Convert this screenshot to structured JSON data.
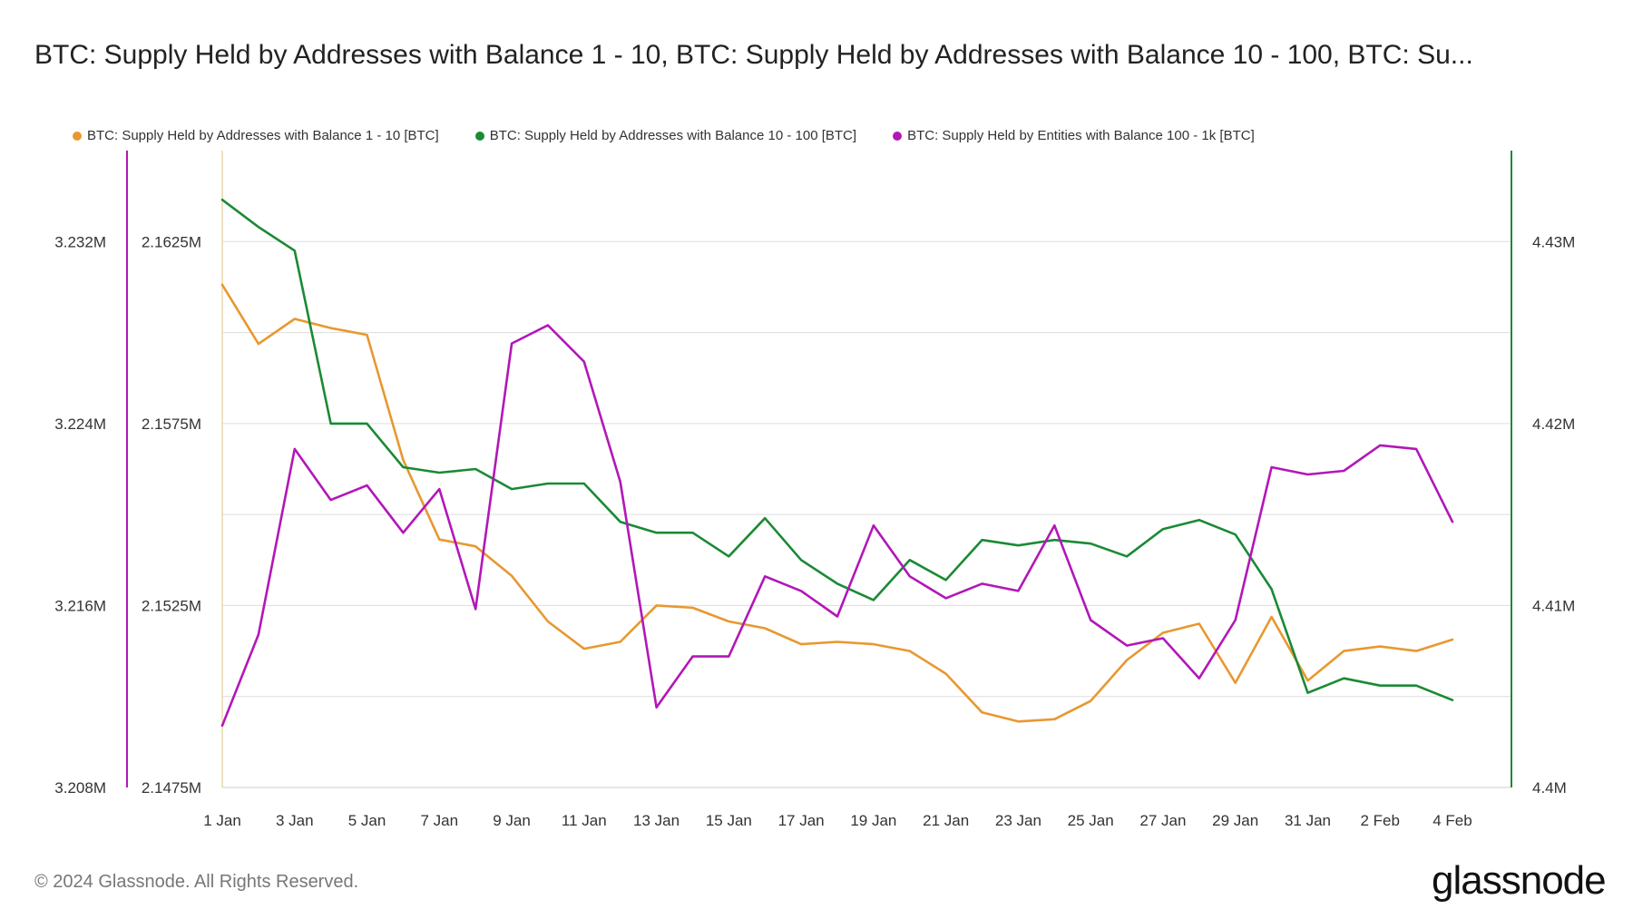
{
  "title": "BTC: Supply Held by Addresses with Balance 1 - 10, BTC: Supply Held by Addresses with Balance 10 - 100, BTC: Su...",
  "footer": "© 2024 Glassnode. All Rights Reserved.",
  "logo_text": "glassnode",
  "chart_data": {
    "type": "line",
    "title": "BTC: Supply Held by Addresses with Balance 1 - 10, BTC: Supply Held by Addresses with Balance 10 - 100, BTC: Su...",
    "grid": true,
    "legend_position": "top-left",
    "x": [
      "1 Jan",
      "2 Jan",
      "3 Jan",
      "4 Jan",
      "5 Jan",
      "6 Jan",
      "7 Jan",
      "8 Jan",
      "9 Jan",
      "10 Jan",
      "11 Jan",
      "12 Jan",
      "13 Jan",
      "14 Jan",
      "15 Jan",
      "16 Jan",
      "17 Jan",
      "18 Jan",
      "19 Jan",
      "20 Jan",
      "21 Jan",
      "22 Jan",
      "23 Jan",
      "24 Jan",
      "25 Jan",
      "26 Jan",
      "27 Jan",
      "28 Jan",
      "29 Jan",
      "30 Jan",
      "31 Jan",
      "1 Feb",
      "2 Feb",
      "3 Feb",
      "4 Feb"
    ],
    "x_tick_labels": [
      "1 Jan",
      "3 Jan",
      "5 Jan",
      "7 Jan",
      "9 Jan",
      "11 Jan",
      "13 Jan",
      "15 Jan",
      "17 Jan",
      "19 Jan",
      "21 Jan",
      "23 Jan",
      "25 Jan",
      "27 Jan",
      "29 Jan",
      "31 Jan",
      "2 Feb",
      "4 Feb"
    ],
    "axes": {
      "left_outer": {
        "series": 0,
        "range": [
          3.208,
          3.236
        ],
        "ticks": [
          "3.208M",
          "3.216M",
          "3.224M",
          "3.232M"
        ],
        "tick_values": [
          3.208,
          3.216,
          3.224,
          3.232
        ]
      },
      "left_inner": {
        "series": 2,
        "range": [
          2.1475,
          2.165
        ],
        "ticks": [
          "2.1475M",
          "2.1525M",
          "2.1575M",
          "2.1625M"
        ],
        "tick_values": [
          2.1475,
          2.1525,
          2.1575,
          2.1625
        ],
        "color": "#b217b8"
      },
      "right": {
        "series": 1,
        "range": [
          4.4,
          4.435
        ],
        "ticks": [
          "4.4M",
          "4.41M",
          "4.42M",
          "4.43M"
        ],
        "tick_values": [
          4.4,
          4.41,
          4.42,
          4.43
        ],
        "color": "#1a8a35"
      }
    },
    "series": [
      {
        "name": "BTC: Supply Held by Addresses with Balance 1 - 10 [BTC]",
        "color": "#e8982f",
        "axis": "left_outer",
        "unit": "M",
        "values": [
          3.2301,
          3.2275,
          3.2286,
          3.2282,
          3.2279,
          3.2224,
          3.2189,
          3.2186,
          3.2173,
          3.2153,
          3.2141,
          3.2144,
          3.216,
          3.2159,
          3.2153,
          3.215,
          3.2143,
          3.2144,
          3.2143,
          3.214,
          3.213,
          3.2113,
          3.2109,
          3.211,
          3.2118,
          3.2136,
          3.2148,
          3.2152,
          3.2126,
          3.2155,
          3.2127,
          3.214,
          3.2142,
          3.214,
          3.2145
        ]
      },
      {
        "name": "BTC: Supply Held by Addresses with Balance 10 - 100 [BTC]",
        "color": "#1a8a35",
        "axis": "right",
        "unit": "M",
        "values": [
          4.4323,
          4.4308,
          4.4295,
          4.42,
          4.42,
          4.4176,
          4.4173,
          4.4175,
          4.4164,
          4.4167,
          4.4167,
          4.4146,
          4.414,
          4.414,
          4.4127,
          4.4148,
          4.4125,
          4.4112,
          4.4103,
          4.4125,
          4.4114,
          4.4136,
          4.4133,
          4.4136,
          4.4134,
          4.4127,
          4.4142,
          4.4147,
          4.4139,
          4.4109,
          4.4052,
          4.406,
          4.4056,
          4.4056,
          4.4048
        ]
      },
      {
        "name": "BTC: Supply Held by Entities with Balance 100 - 1k [BTC]",
        "color": "#b217b8",
        "axis": "left_inner",
        "unit": "M",
        "values": [
          2.1492,
          2.1517,
          2.1568,
          2.1554,
          2.1558,
          2.1545,
          2.1557,
          2.1524,
          2.1597,
          2.1602,
          2.1592,
          2.1559,
          2.1497,
          2.1511,
          2.1511,
          2.1533,
          2.1529,
          2.1522,
          2.1547,
          2.1533,
          2.1527,
          2.1531,
          2.1529,
          2.1547,
          2.1521,
          2.1514,
          2.1516,
          2.1505,
          2.1521,
          2.1563,
          2.1561,
          2.1562,
          2.1569,
          2.1568,
          2.1548
        ]
      }
    ]
  }
}
